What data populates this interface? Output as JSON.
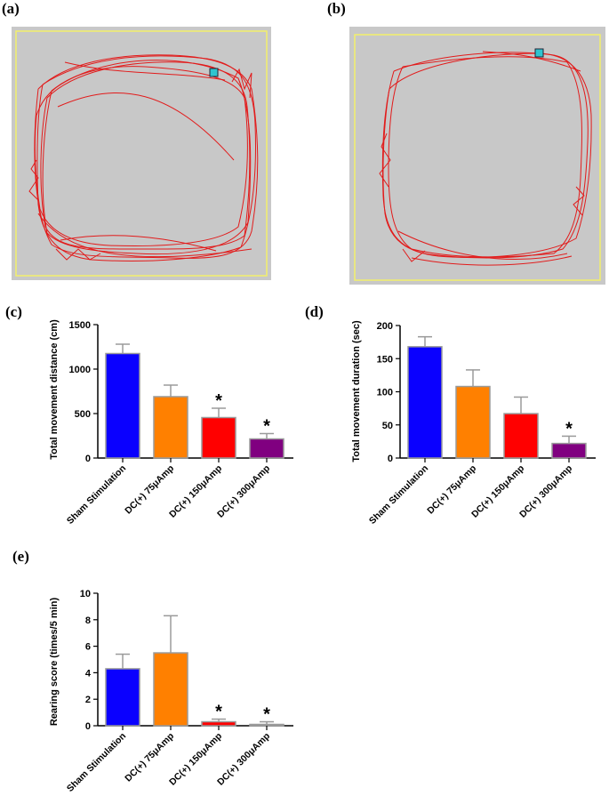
{
  "panel_labels": {
    "a": "(a)",
    "b": "(b)",
    "c": "(c)",
    "d": "(d)",
    "e": "(e)"
  },
  "colors": {
    "arena_bg": "#c8c8c8",
    "arena_border": "#f2ef6a",
    "track": "#e21b1b",
    "marker": "#2ec4cf"
  },
  "chart_data": [
    {
      "type": "bar",
      "ylabel": "Total movement distance (cm)",
      "ylim": [
        0,
        1500
      ],
      "yticks": [
        0,
        500,
        1000,
        1500
      ],
      "categories": [
        "Sham Stimulation",
        "DC(+) 75μAmp",
        "DC(+) 150μAmp",
        "DC(+) 300μAmp"
      ],
      "values": [
        1175,
        690,
        455,
        215
      ],
      "errors": [
        105,
        130,
        105,
        60
      ],
      "significant": [
        false,
        false,
        true,
        true
      ],
      "sig_marker": "*",
      "bar_colors": [
        "#0a00ff",
        "#ff8000",
        "#ff0000",
        "#800080"
      ]
    },
    {
      "type": "bar",
      "ylabel": "Total movement duration (sec)",
      "ylim": [
        0,
        200
      ],
      "yticks": [
        0,
        50,
        100,
        150,
        200
      ],
      "categories": [
        "Sham Stimulation",
        "DC(+) 75μAmp",
        "DC(+) 150μAmp",
        "DC(+) 300μAmp"
      ],
      "values": [
        168,
        108,
        67,
        22
      ],
      "errors": [
        15,
        25,
        25,
        11
      ],
      "significant": [
        false,
        false,
        false,
        true
      ],
      "sig_marker": "*",
      "bar_colors": [
        "#0a00ff",
        "#ff8000",
        "#ff0000",
        "#800080"
      ]
    },
    {
      "type": "bar",
      "ylabel": "Rearing score (times/5 min)",
      "ylim": [
        0,
        10
      ],
      "yticks": [
        0,
        2,
        4,
        6,
        8,
        10
      ],
      "categories": [
        "Sham Stimulation",
        "DC(+) 75μAmp",
        "DC(+) 150μAmp",
        "DC(+) 300μAmp"
      ],
      "values": [
        4.3,
        5.5,
        0.3,
        0.1
      ],
      "errors": [
        1.1,
        2.8,
        0.2,
        0.2
      ],
      "significant": [
        false,
        false,
        true,
        true
      ],
      "sig_marker": "*",
      "bar_colors": [
        "#0a00ff",
        "#ff8000",
        "#ff0000",
        "#800080"
      ]
    }
  ]
}
